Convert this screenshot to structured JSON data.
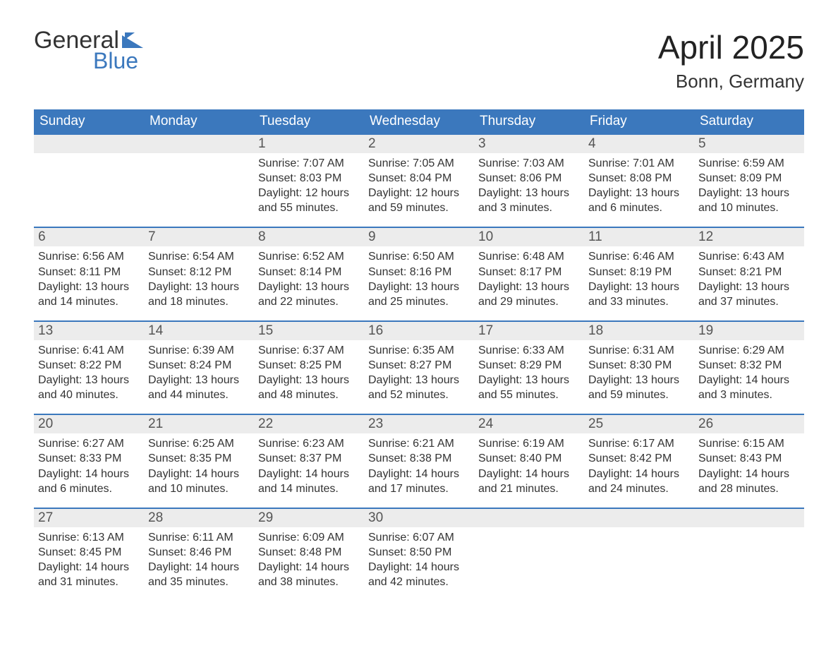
{
  "logo": {
    "text1": "General",
    "text2": "Blue",
    "flag_color": "#3b78bd"
  },
  "title": "April 2025",
  "location": "Bonn, Germany",
  "header_bg": "#3b78bd",
  "header_text_color": "#ffffff",
  "daynum_bg": "#ececec",
  "week_border_color": "#3b78bd",
  "body_text_color": "#333333",
  "font_family": "Arial",
  "title_fontsize": 46,
  "location_fontsize": 26,
  "weekday_fontsize": 19,
  "daynum_fontsize": 19,
  "body_fontsize": 16,
  "weekdays": [
    "Sunday",
    "Monday",
    "Tuesday",
    "Wednesday",
    "Thursday",
    "Friday",
    "Saturday"
  ],
  "weeks": [
    [
      {
        "n": "",
        "sunrise": "",
        "sunset": "",
        "daylight": ""
      },
      {
        "n": "",
        "sunrise": "",
        "sunset": "",
        "daylight": ""
      },
      {
        "n": "1",
        "sunrise": "Sunrise: 7:07 AM",
        "sunset": "Sunset: 8:03 PM",
        "daylight": "Daylight: 12 hours and 55 minutes."
      },
      {
        "n": "2",
        "sunrise": "Sunrise: 7:05 AM",
        "sunset": "Sunset: 8:04 PM",
        "daylight": "Daylight: 12 hours and 59 minutes."
      },
      {
        "n": "3",
        "sunrise": "Sunrise: 7:03 AM",
        "sunset": "Sunset: 8:06 PM",
        "daylight": "Daylight: 13 hours and 3 minutes."
      },
      {
        "n": "4",
        "sunrise": "Sunrise: 7:01 AM",
        "sunset": "Sunset: 8:08 PM",
        "daylight": "Daylight: 13 hours and 6 minutes."
      },
      {
        "n": "5",
        "sunrise": "Sunrise: 6:59 AM",
        "sunset": "Sunset: 8:09 PM",
        "daylight": "Daylight: 13 hours and 10 minutes."
      }
    ],
    [
      {
        "n": "6",
        "sunrise": "Sunrise: 6:56 AM",
        "sunset": "Sunset: 8:11 PM",
        "daylight": "Daylight: 13 hours and 14 minutes."
      },
      {
        "n": "7",
        "sunrise": "Sunrise: 6:54 AM",
        "sunset": "Sunset: 8:12 PM",
        "daylight": "Daylight: 13 hours and 18 minutes."
      },
      {
        "n": "8",
        "sunrise": "Sunrise: 6:52 AM",
        "sunset": "Sunset: 8:14 PM",
        "daylight": "Daylight: 13 hours and 22 minutes."
      },
      {
        "n": "9",
        "sunrise": "Sunrise: 6:50 AM",
        "sunset": "Sunset: 8:16 PM",
        "daylight": "Daylight: 13 hours and 25 minutes."
      },
      {
        "n": "10",
        "sunrise": "Sunrise: 6:48 AM",
        "sunset": "Sunset: 8:17 PM",
        "daylight": "Daylight: 13 hours and 29 minutes."
      },
      {
        "n": "11",
        "sunrise": "Sunrise: 6:46 AM",
        "sunset": "Sunset: 8:19 PM",
        "daylight": "Daylight: 13 hours and 33 minutes."
      },
      {
        "n": "12",
        "sunrise": "Sunrise: 6:43 AM",
        "sunset": "Sunset: 8:21 PM",
        "daylight": "Daylight: 13 hours and 37 minutes."
      }
    ],
    [
      {
        "n": "13",
        "sunrise": "Sunrise: 6:41 AM",
        "sunset": "Sunset: 8:22 PM",
        "daylight": "Daylight: 13 hours and 40 minutes."
      },
      {
        "n": "14",
        "sunrise": "Sunrise: 6:39 AM",
        "sunset": "Sunset: 8:24 PM",
        "daylight": "Daylight: 13 hours and 44 minutes."
      },
      {
        "n": "15",
        "sunrise": "Sunrise: 6:37 AM",
        "sunset": "Sunset: 8:25 PM",
        "daylight": "Daylight: 13 hours and 48 minutes."
      },
      {
        "n": "16",
        "sunrise": "Sunrise: 6:35 AM",
        "sunset": "Sunset: 8:27 PM",
        "daylight": "Daylight: 13 hours and 52 minutes."
      },
      {
        "n": "17",
        "sunrise": "Sunrise: 6:33 AM",
        "sunset": "Sunset: 8:29 PM",
        "daylight": "Daylight: 13 hours and 55 minutes."
      },
      {
        "n": "18",
        "sunrise": "Sunrise: 6:31 AM",
        "sunset": "Sunset: 8:30 PM",
        "daylight": "Daylight: 13 hours and 59 minutes."
      },
      {
        "n": "19",
        "sunrise": "Sunrise: 6:29 AM",
        "sunset": "Sunset: 8:32 PM",
        "daylight": "Daylight: 14 hours and 3 minutes."
      }
    ],
    [
      {
        "n": "20",
        "sunrise": "Sunrise: 6:27 AM",
        "sunset": "Sunset: 8:33 PM",
        "daylight": "Daylight: 14 hours and 6 minutes."
      },
      {
        "n": "21",
        "sunrise": "Sunrise: 6:25 AM",
        "sunset": "Sunset: 8:35 PM",
        "daylight": "Daylight: 14 hours and 10 minutes."
      },
      {
        "n": "22",
        "sunrise": "Sunrise: 6:23 AM",
        "sunset": "Sunset: 8:37 PM",
        "daylight": "Daylight: 14 hours and 14 minutes."
      },
      {
        "n": "23",
        "sunrise": "Sunrise: 6:21 AM",
        "sunset": "Sunset: 8:38 PM",
        "daylight": "Daylight: 14 hours and 17 minutes."
      },
      {
        "n": "24",
        "sunrise": "Sunrise: 6:19 AM",
        "sunset": "Sunset: 8:40 PM",
        "daylight": "Daylight: 14 hours and 21 minutes."
      },
      {
        "n": "25",
        "sunrise": "Sunrise: 6:17 AM",
        "sunset": "Sunset: 8:42 PM",
        "daylight": "Daylight: 14 hours and 24 minutes."
      },
      {
        "n": "26",
        "sunrise": "Sunrise: 6:15 AM",
        "sunset": "Sunset: 8:43 PM",
        "daylight": "Daylight: 14 hours and 28 minutes."
      }
    ],
    [
      {
        "n": "27",
        "sunrise": "Sunrise: 6:13 AM",
        "sunset": "Sunset: 8:45 PM",
        "daylight": "Daylight: 14 hours and 31 minutes."
      },
      {
        "n": "28",
        "sunrise": "Sunrise: 6:11 AM",
        "sunset": "Sunset: 8:46 PM",
        "daylight": "Daylight: 14 hours and 35 minutes."
      },
      {
        "n": "29",
        "sunrise": "Sunrise: 6:09 AM",
        "sunset": "Sunset: 8:48 PM",
        "daylight": "Daylight: 14 hours and 38 minutes."
      },
      {
        "n": "30",
        "sunrise": "Sunrise: 6:07 AM",
        "sunset": "Sunset: 8:50 PM",
        "daylight": "Daylight: 14 hours and 42 minutes."
      },
      {
        "n": "",
        "sunrise": "",
        "sunset": "",
        "daylight": ""
      },
      {
        "n": "",
        "sunrise": "",
        "sunset": "",
        "daylight": ""
      },
      {
        "n": "",
        "sunrise": "",
        "sunset": "",
        "daylight": ""
      }
    ]
  ]
}
